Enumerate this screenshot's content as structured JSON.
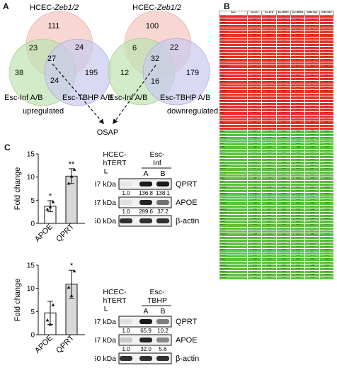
{
  "panels": {
    "a": "A",
    "b": "B",
    "c": "C"
  },
  "venn": {
    "left": {
      "labels": {
        "top_prefix": "HCEC-",
        "top_italic": "Zeb1/2",
        "bottom_left": "Esc-Inf A/B",
        "bottom_right": "Esc-TBHP A/B"
      },
      "counts": {
        "top_only": "111",
        "top_left": "23",
        "top_right": "24",
        "center": "27",
        "left_only": "38",
        "left_right": "24",
        "right_only": "195"
      },
      "caption": "upregulated",
      "fill_colors": {
        "top": "#f6c9c3",
        "left": "#bfe3b1",
        "right": "#c9c9ee"
      }
    },
    "right": {
      "labels": {
        "top_prefix": "HCEC-",
        "top_italic": "Zeb1/2",
        "bottom_left": "Esc-Inf A/B",
        "bottom_right": "Esc-TBHP A/B"
      },
      "counts": {
        "top_only": "100",
        "top_left": "6",
        "top_right": "22",
        "center": "32",
        "left_only": "12",
        "left_right": "16",
        "right_only": "179"
      },
      "caption": "downregulated"
    },
    "merge_label": "OSAP"
  },
  "table": {
    "headers": [
      "Gene",
      "Esc-Inf A",
      "Esc-Inf B",
      "Esc-TBHP A",
      "Esc-TBHP B",
      "HCEC-Zeb1",
      "HCEC-Zeb2"
    ],
    "up_color": "#e8312c",
    "down_color": "#5bc23a",
    "up_rows": [
      [
        "QPRT",
        "1.15",
        "1.21",
        "1.04",
        "1.12",
        "1.58",
        "1.60"
      ],
      [
        "APOE",
        "0.98",
        "1.02",
        "1.10",
        "1.08",
        "1.42",
        "1.37"
      ],
      [
        "GSDMA",
        "0.86",
        "0.91",
        "0.94",
        "0.88",
        "1.36",
        "1.29"
      ],
      [
        "CRISPLD2",
        "0.84",
        "0.87",
        "0.89",
        "0.92",
        "1.31",
        "1.26"
      ],
      [
        "TFPI2",
        "0.83",
        "0.85",
        "0.88",
        "0.86",
        "1.27",
        "1.21"
      ],
      [
        "SULT1A1",
        "0.81",
        "0.83",
        "0.86",
        "0.84",
        "1.24",
        "1.19"
      ],
      [
        "NPC2",
        "0.80",
        "0.82",
        "0.85",
        "0.83",
        "1.21",
        "1.17"
      ],
      [
        "ALDH3A1",
        "0.79",
        "0.80",
        "0.84",
        "0.82",
        "1.18",
        "1.14"
      ],
      [
        "GPX3",
        "0.78",
        "0.79",
        "0.82",
        "0.80",
        "1.15",
        "1.12"
      ],
      [
        "CTSK",
        "0.77",
        "0.78",
        "0.81",
        "0.79",
        "1.12",
        "1.10"
      ],
      [
        "LUM",
        "0.76",
        "0.77",
        "0.80",
        "0.78",
        "1.10",
        "1.08"
      ],
      [
        "DCN",
        "0.75",
        "0.76",
        "0.79",
        "0.77",
        "1.08",
        "1.06"
      ],
      [
        "PTGDS",
        "0.74",
        "0.75",
        "0.78",
        "0.76",
        "1.06",
        "1.04"
      ],
      [
        "MGP",
        "0.73",
        "0.74",
        "0.77",
        "0.75",
        "1.04",
        "1.02"
      ],
      [
        "IGFBP5",
        "0.72",
        "0.73",
        "0.76",
        "0.74",
        "1.02",
        "1.00"
      ],
      [
        "FBLN1",
        "0.71",
        "0.72",
        "0.75",
        "0.73",
        "0.99",
        "0.98"
      ],
      [
        "SERPINF1",
        "0.70",
        "0.71",
        "0.74",
        "0.72",
        "0.97",
        "0.96"
      ],
      [
        "C3",
        "0.69",
        "0.70",
        "0.73",
        "0.71",
        "0.95",
        "0.94"
      ],
      [
        "CFD",
        "0.68",
        "0.69",
        "0.72",
        "0.70",
        "0.93",
        "0.92"
      ],
      [
        "MMP2",
        "0.67",
        "0.68",
        "0.71",
        "0.69",
        "0.91",
        "0.90"
      ],
      [
        "TIMP3",
        "0.66",
        "0.67",
        "0.70",
        "0.68",
        "0.89",
        "0.88"
      ],
      [
        "COL1A2",
        "0.65",
        "0.66",
        "0.69",
        "0.67",
        "0.87",
        "0.86"
      ],
      [
        "SPARC",
        "0.64",
        "0.65",
        "0.68",
        "0.66",
        "0.85",
        "0.84"
      ],
      [
        "CTSS",
        "0.63",
        "0.64",
        "0.67",
        "0.65",
        "0.83",
        "0.82"
      ],
      [
        "CYP1B1",
        "0.62",
        "0.63",
        "0.66",
        "0.64",
        "0.81",
        "0.80"
      ],
      [
        "KRT19",
        "0.61",
        "0.62",
        "0.65",
        "0.63",
        "0.79",
        "0.78"
      ],
      [
        "PDLIM1",
        "0.60",
        "0.61",
        "0.64",
        "0.62",
        "0.77",
        "0.76"
      ],
      [
        "AKR1C1",
        "0.59",
        "0.60",
        "0.63",
        "0.61",
        "0.75",
        "0.74"
      ],
      [
        "S100A4",
        "0.58",
        "0.59",
        "0.62",
        "0.60",
        "0.73",
        "0.72"
      ],
      [
        "TXNIP",
        "0.57",
        "0.58",
        "0.61",
        "0.59",
        "0.71",
        "0.70"
      ],
      [
        "ANXA1",
        "0.56",
        "0.57",
        "0.60",
        "0.58",
        "0.69",
        "0.68"
      ],
      [
        "CAV1",
        "0.55",
        "0.56",
        "0.59",
        "0.57",
        "0.67",
        "0.66"
      ],
      [
        "ID1",
        "0.54",
        "0.55",
        "0.58",
        "0.56",
        "0.65",
        "0.64"
      ],
      [
        "CLU",
        "0.53",
        "0.54",
        "0.57",
        "0.55",
        "0.63",
        "0.62"
      ],
      [
        "IFI27",
        "0.52",
        "0.53",
        "0.56",
        "0.54",
        "0.61",
        "0.60"
      ],
      [
        "GLRX",
        "0.51",
        "0.52",
        "0.55",
        "0.53",
        "0.59",
        "0.58"
      ],
      [
        "SERPINE2",
        "0.50",
        "0.51",
        "0.54",
        "0.52",
        "0.57",
        "0.56"
      ]
    ],
    "down_rows": [
      [
        "E2F1",
        "-1.52",
        "-1.67",
        "-1.71",
        "-1.81",
        "-1.86",
        "-2.02"
      ],
      [
        "RRM2",
        "-1.54",
        "-1.66",
        "-1.76",
        "-1.76",
        "-1.84",
        "-2.09"
      ],
      [
        "CCNB1",
        "-1.56",
        "-1.63",
        "-1.66",
        "-1.78",
        "-1.94",
        "-2.16"
      ],
      [
        "CDC20",
        "-1.63",
        "-1.72",
        "-1.79",
        "-1.83",
        "-1.98",
        "-2.18"
      ],
      [
        "PBK",
        "-1.65",
        "-1.76",
        "-1.81",
        "-1.86",
        "-2.02",
        "-2.20"
      ],
      [
        "BUB1",
        "-1.66",
        "-1.78",
        "-1.84",
        "-1.88",
        "-2.05",
        "-2.22"
      ],
      [
        "TOP2A",
        "-1.68",
        "-1.80",
        "-1.86",
        "-1.90",
        "-2.08",
        "-2.24"
      ],
      [
        "MKI67",
        "-1.70",
        "-1.82",
        "-1.88",
        "-1.92",
        "-2.10",
        "-2.26"
      ],
      [
        "CENPF",
        "-1.71",
        "-1.83",
        "-1.90",
        "-1.94",
        "-2.12",
        "-2.28"
      ],
      [
        "KIF11",
        "-1.72",
        "-1.85",
        "-1.92",
        "-1.96",
        "-2.14",
        "-2.30"
      ],
      [
        "TTK",
        "-1.74",
        "-1.87",
        "-1.94",
        "-1.98",
        "-2.16",
        "-2.32"
      ],
      [
        "NUSAP1",
        "-1.75",
        "-1.89",
        "-1.96",
        "-2.00",
        "-2.18",
        "-2.34"
      ],
      [
        "ASPM",
        "-1.77",
        "-1.91",
        "-1.98",
        "-2.02",
        "-2.20",
        "-2.36"
      ],
      [
        "DLGAP5",
        "-1.78",
        "-1.93",
        "-2.00",
        "-2.04",
        "-2.22",
        "-2.38"
      ],
      [
        "HMMR",
        "-1.80",
        "-1.95",
        "-2.02",
        "-2.06",
        "-2.24",
        "-2.40"
      ],
      [
        "CDK1",
        "-1.81",
        "-1.97",
        "-2.04",
        "-2.08",
        "-2.26",
        "-2.42"
      ],
      [
        "PLK1",
        "-1.83",
        "-1.99",
        "-2.06",
        "-2.10",
        "-2.28",
        "-2.44"
      ],
      [
        "AURKA",
        "-1.84",
        "-2.01",
        "-2.08",
        "-2.12",
        "-2.30",
        "-2.46"
      ],
      [
        "CCNA2",
        "-1.86",
        "-2.03",
        "-2.10",
        "-2.14",
        "-2.32",
        "-2.48"
      ],
      [
        "KIF2C",
        "-1.87",
        "-2.05",
        "-2.12",
        "-2.16",
        "-2.34",
        "-2.50"
      ],
      [
        "MAD2L1",
        "-1.89",
        "-2.07",
        "-2.14",
        "-2.18",
        "-2.36",
        "-2.52"
      ],
      [
        "CDKN3",
        "-1.90",
        "-2.09",
        "-2.16",
        "-2.20",
        "-2.38",
        "-2.54"
      ],
      [
        "ZWINT",
        "-1.92",
        "-2.11",
        "-2.18",
        "-2.22",
        "-2.40",
        "-2.56"
      ],
      [
        "NCAPG",
        "-1.93",
        "-2.13",
        "-2.20",
        "-2.24",
        "-2.42",
        "-2.58"
      ],
      [
        "TPX2",
        "-1.95",
        "-2.15",
        "-2.22",
        "-2.26",
        "-2.44",
        "-2.60"
      ],
      [
        "MCM10",
        "-1.96",
        "-2.17",
        "-2.24",
        "-2.28",
        "-2.46",
        "-2.62"
      ],
      [
        "KIF20A",
        "-1.98",
        "-2.19",
        "-2.26",
        "-2.30",
        "-2.48",
        "-2.64"
      ],
      [
        "CENPE",
        "-1.99",
        "-2.21",
        "-2.28",
        "-2.32",
        "-2.50",
        "-2.66"
      ],
      [
        "MELK",
        "-2.01",
        "-2.23",
        "-2.30",
        "-2.34",
        "-2.52",
        "-2.68"
      ],
      [
        "UBE2C",
        "-2.02",
        "-2.25",
        "-2.32",
        "-2.36",
        "-2.54",
        "-2.70"
      ],
      [
        "BIRC5",
        "-2.04",
        "-2.27",
        "-2.34",
        "-2.38",
        "-2.56",
        "-2.72"
      ],
      [
        "CCNB2",
        "-2.05",
        "-2.29",
        "-2.36",
        "-2.40",
        "-2.58",
        "-2.74"
      ],
      [
        "KIF4A",
        "-2.07",
        "-2.31",
        "-2.38",
        "-2.42",
        "-2.60",
        "-2.76"
      ],
      [
        "FOXM1",
        "-2.08",
        "-2.33",
        "-2.40",
        "-2.44",
        "-2.62",
        "-2.78"
      ],
      [
        "TYMS",
        "-2.10",
        "-2.35",
        "-2.42",
        "-2.46",
        "-2.64",
        "-2.80"
      ],
      [
        "HJURP",
        "-2.11",
        "-2.37",
        "-2.44",
        "-2.48",
        "-2.66",
        "-2.82"
      ],
      [
        "CDCA8",
        "-2.13",
        "-2.39",
        "-2.46",
        "-2.50",
        "-2.68",
        "-2.84"
      ],
      [
        "DEPDC1",
        "-2.14",
        "-2.41",
        "-2.48",
        "-2.52",
        "-2.70",
        "-2.86"
      ],
      [
        "EXO1",
        "-2.16",
        "-2.43",
        "-2.50",
        "-2.54",
        "-2.72",
        "-2.88"
      ],
      [
        "GINS2",
        "-2.17",
        "-2.45",
        "-2.52",
        "-2.56",
        "-2.74",
        "-2.90"
      ],
      [
        "CENPA",
        "-2.19",
        "-2.47",
        "-2.54",
        "-2.58",
        "-2.76",
        "-2.92"
      ],
      [
        "KIF14",
        "-2.20",
        "-2.49",
        "-2.56",
        "-2.60",
        "-2.78",
        "-2.94"
      ],
      [
        "ESCO2",
        "-2.22",
        "-2.51",
        "-2.58",
        "-2.62",
        "-2.80",
        "-2.96"
      ],
      [
        "CKAP2L",
        "-2.23",
        "-2.53",
        "-2.60",
        "-2.64",
        "-2.82",
        "-2.98"
      ],
      [
        "RAD51AP1",
        "-2.25",
        "-2.55",
        "-2.62",
        "-2.66",
        "-2.84",
        "-3.00"
      ],
      [
        "SPC25",
        "-2.26",
        "-2.57",
        "-2.64",
        "-2.68",
        "-2.86",
        "-3.02"
      ],
      [
        "NDC80",
        "-2.28",
        "-2.59",
        "-2.66",
        "-2.70",
        "-2.88",
        "-3.04"
      ],
      [
        "CDCA5",
        "-2.30",
        "-2.61",
        "-2.68",
        "-2.72",
        "-2.90",
        "-3.06"
      ]
    ]
  },
  "chart_data": [
    {
      "type": "bar",
      "title": "",
      "ylabel": "Fold change",
      "categories": [
        "APOE",
        "QPRT"
      ],
      "values": [
        3.7,
        10.2
      ],
      "errors": [
        1.2,
        1.6
      ],
      "points": [
        [
          3.0,
          3.5,
          4.6
        ],
        [
          8.6,
          10.1,
          11.6
        ]
      ],
      "significance": [
        "*",
        "**"
      ],
      "ylim": [
        0,
        15
      ],
      "yticks": [
        0,
        5,
        10,
        15
      ],
      "bar_colors": [
        "#ffffff",
        "#d9d9d9"
      ]
    },
    {
      "type": "bar",
      "title": "",
      "ylabel": "Fold change",
      "categories": [
        "APOE",
        "QPRT"
      ],
      "values": [
        4.7,
        10.9
      ],
      "errors": [
        2.5,
        3.0
      ],
      "points": [
        [
          3.1,
          2.2,
          6.4
        ],
        [
          10.2,
          8.4,
          13.7
        ]
      ],
      "significance": [
        "",
        "*"
      ],
      "ylim": [
        0,
        15
      ],
      "yticks": [
        0,
        5,
        10,
        15
      ],
      "bar_colors": [
        "#ffffff",
        "#d9d9d9"
      ]
    }
  ],
  "westerns": [
    {
      "cell_label_1": "HCEC-",
      "cell_label_2": "hTERT",
      "group_label_1": "Esc-",
      "group_label_2": "Inf",
      "lanes": [
        "A",
        "B"
      ],
      "bands": [
        {
          "kda": "37 kDa",
          "name": "QPRT",
          "quant": [
            "1.0",
            "136.8",
            "138.1"
          ],
          "intensity": [
            0.02,
            0.95,
            0.95
          ]
        },
        {
          "kda": "37 kDa",
          "name": "APOE",
          "quant": [
            "1.0",
            "289.6",
            "37.2"
          ],
          "intensity": [
            0.05,
            0.9,
            0.55
          ]
        },
        {
          "kda": "50 kDa",
          "name": "β-actin",
          "quant": [],
          "intensity": [
            0.85,
            0.85,
            0.85
          ]
        }
      ]
    },
    {
      "cell_label_1": "HCEC-",
      "cell_label_2": "hTERT",
      "group_label_1": "Esc-",
      "group_label_2": "TBHP",
      "lanes": [
        "A",
        "B"
      ],
      "bands": [
        {
          "kda": "37 kDa",
          "name": "QPRT",
          "quant": [
            "1.0",
            "65.9",
            "10.2"
          ],
          "intensity": [
            0.05,
            0.95,
            0.5
          ]
        },
        {
          "kda": "37 kDa",
          "name": "APOE",
          "quant": [
            "1.0",
            "32.0",
            "5.6"
          ],
          "intensity": [
            0.15,
            0.9,
            0.45
          ]
        },
        {
          "kda": "50 kDa",
          "name": "β-actin",
          "quant": [],
          "intensity": [
            0.85,
            0.85,
            0.85
          ]
        }
      ]
    }
  ]
}
